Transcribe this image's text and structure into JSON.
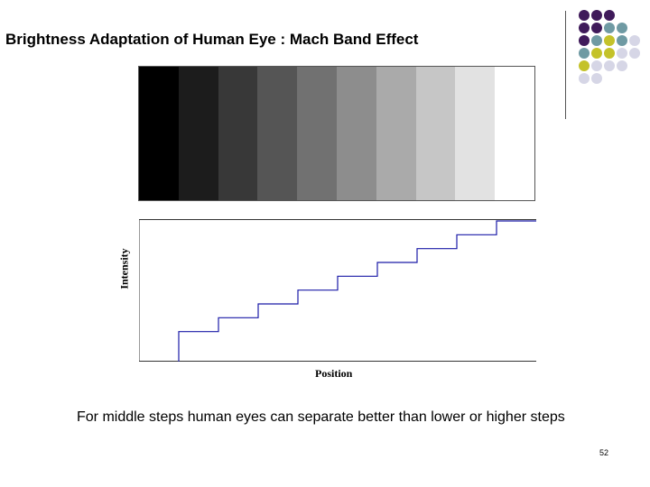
{
  "slide": {
    "title": "Brightness Adaptation of Human Eye : Mach Band Effect",
    "caption": "For middle steps human eyes can separate better than lower or higher steps",
    "page_number": "52"
  },
  "colors": {
    "purple": "#3f1a5a",
    "teal": "#6f9aa3",
    "olive": "#c4c22a",
    "lavender": "#d6d6e6",
    "line": "#1a1aa8"
  },
  "decor": {
    "dot_grid": [
      [
        "purple",
        "purple",
        "purple"
      ],
      [
        "purple",
        "purple",
        "teal",
        "teal"
      ],
      [
        "purple",
        "teal",
        "olive",
        "teal",
        "lavender"
      ],
      [
        "teal",
        "olive",
        "olive",
        "lavender",
        "lavender"
      ],
      [
        "olive",
        "lavender",
        "lavender",
        "lavender"
      ],
      [
        "lavender",
        "lavender"
      ]
    ]
  },
  "bands": [
    "#000000",
    "#1c1c1c",
    "#383838",
    "#555555",
    "#717171",
    "#8d8d8d",
    "#aaaaaa",
    "#c6c6c6",
    "#e2e2e2",
    "#ffffff"
  ],
  "chart_data": {
    "type": "line",
    "title": "",
    "xlabel": "Position",
    "ylabel": "Intensity",
    "x_steps": [
      0,
      1,
      2,
      3,
      4,
      5,
      6,
      7,
      8,
      9
    ],
    "values": [
      0,
      1,
      2,
      3,
      4,
      5,
      6,
      7,
      8,
      9
    ],
    "ylim": [
      0,
      9
    ],
    "step_style": "staircase"
  }
}
